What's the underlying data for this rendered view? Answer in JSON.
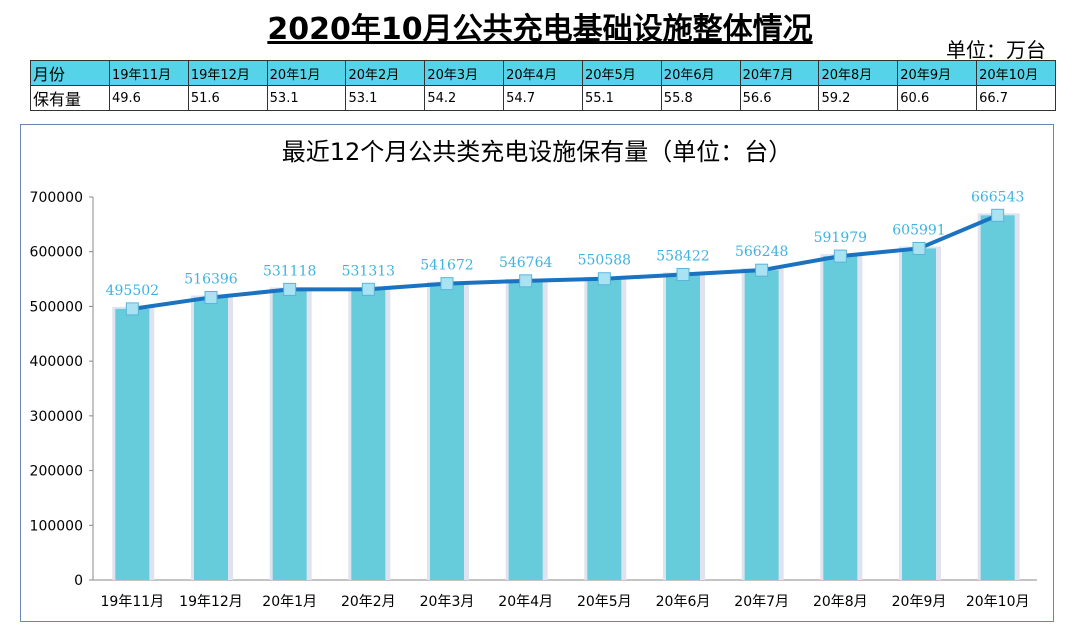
{
  "page": {
    "title": "2020年10月公共充电基础设施整体情况",
    "unit": "单位：万台"
  },
  "table": {
    "header_label": "月份",
    "row_label": "保有量",
    "months": [
      "19年11月",
      "19年12月",
      "20年1月",
      "20年2月",
      "20年3月",
      "20年4月",
      "20年5月",
      "20年6月",
      "20年7月",
      "20年8月",
      "20年9月",
      "20年10月"
    ],
    "values": [
      "49.6",
      "51.6",
      "53.1",
      "53.1",
      "54.2",
      "54.7",
      "55.1",
      "55.8",
      "56.6",
      "59.2",
      "60.6",
      "66.7"
    ]
  },
  "chart_data": {
    "type": "bar",
    "title": "最近12个月公共类充电设施保有量（单位：台）",
    "categories": [
      "19年11月",
      "19年12月",
      "20年1月",
      "20年2月",
      "20年3月",
      "20年4月",
      "20年5月",
      "20年6月",
      "20年7月",
      "20年8月",
      "20年9月",
      "20年10月"
    ],
    "series": [
      {
        "type": "bar",
        "values": [
          495502,
          516396,
          531118,
          531313,
          541672,
          546764,
          550588,
          558422,
          566248,
          591979,
          605991,
          666543
        ]
      },
      {
        "type": "line",
        "values": [
          495502,
          516396,
          531118,
          531313,
          541672,
          546764,
          550588,
          558422,
          566248,
          591979,
          605991,
          666543
        ]
      }
    ],
    "ylim": [
      0,
      700000
    ],
    "yticks": [
      0,
      100000,
      200000,
      300000,
      400000,
      500000,
      600000,
      700000
    ],
    "xlabel": "",
    "ylabel": "",
    "grid": false,
    "legend": "none",
    "colors": {
      "bar": "#66ccdc",
      "line": "#1a72c0",
      "marker": "#a9e3f3",
      "label": "#3fb3e0"
    }
  }
}
